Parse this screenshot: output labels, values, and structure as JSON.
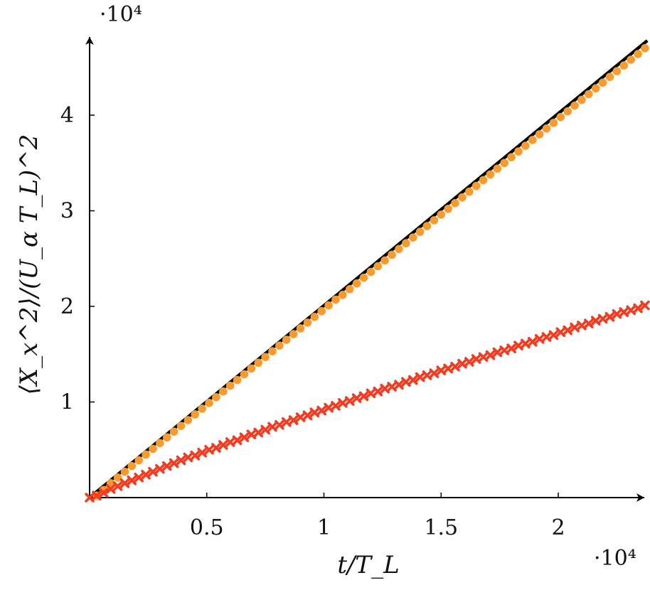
{
  "chart_data": {
    "type": "line",
    "xlabel": "t/T_L",
    "ylabel": "⟨X_x^2⟩/(U_α T_L)^2",
    "x_scale_label": "·10⁴",
    "y_scale_label": "·10⁴",
    "xlim": [
      0,
      2.38
    ],
    "ylim": [
      0,
      4.8
    ],
    "xticks": [
      0.5,
      1,
      1.5,
      2
    ],
    "yticks": [
      1,
      2,
      3,
      4
    ],
    "xtick_labels": [
      "0.5",
      "1",
      "1.5",
      "2"
    ],
    "ytick_labels": [
      "1",
      "2",
      "3",
      "4"
    ],
    "grid": false,
    "legend": "none",
    "series": [
      {
        "style": "solid-line",
        "color": "#000000",
        "x": [
          0,
          2.38
        ],
        "y": [
          0,
          4.78
        ]
      },
      {
        "style": "circle-markers",
        "color": "#f79b30",
        "x": [
          0.03,
          0.06,
          0.09,
          0.12,
          0.15,
          0.18,
          0.21,
          0.24,
          0.27,
          0.3,
          0.33,
          0.36,
          0.39,
          0.42,
          0.45,
          0.48,
          0.51,
          0.54,
          0.57,
          0.6,
          0.63,
          0.66,
          0.69,
          0.72,
          0.75,
          0.78,
          0.81,
          0.84,
          0.87,
          0.9,
          0.93,
          0.96,
          0.99,
          1.02,
          1.05,
          1.08,
          1.11,
          1.14,
          1.17,
          1.2,
          1.23,
          1.26,
          1.29,
          1.32,
          1.35,
          1.38,
          1.41,
          1.44,
          1.47,
          1.5,
          1.53,
          1.56,
          1.59,
          1.62,
          1.65,
          1.68,
          1.71,
          1.74,
          1.77,
          1.8,
          1.83,
          1.86,
          1.89,
          1.92,
          1.95,
          1.98,
          2.01,
          2.04,
          2.07,
          2.1,
          2.13,
          2.16,
          2.19,
          2.22,
          2.25,
          2.28,
          2.31,
          2.34,
          2.37
        ],
        "y": [
          0.02,
          0.08,
          0.15,
          0.21,
          0.27,
          0.33,
          0.39,
          0.45,
          0.51,
          0.57,
          0.63,
          0.69,
          0.75,
          0.81,
          0.87,
          0.93,
          0.99,
          1.05,
          1.11,
          1.17,
          1.23,
          1.29,
          1.35,
          1.41,
          1.47,
          1.53,
          1.59,
          1.65,
          1.71,
          1.77,
          1.83,
          1.89,
          1.95,
          2.01,
          2.07,
          2.12,
          2.18,
          2.24,
          2.3,
          2.36,
          2.42,
          2.48,
          2.54,
          2.6,
          2.66,
          2.72,
          2.78,
          2.84,
          2.9,
          2.96,
          3.02,
          3.08,
          3.14,
          3.2,
          3.26,
          3.32,
          3.38,
          3.44,
          3.5,
          3.56,
          3.62,
          3.68,
          3.74,
          3.8,
          3.86,
          3.92,
          3.98,
          4.04,
          4.1,
          4.16,
          4.22,
          4.28,
          4.34,
          4.4,
          4.46,
          4.52,
          4.58,
          4.64,
          4.7
        ]
      },
      {
        "style": "x-markers",
        "color": "#f23c22",
        "x": [
          0.0,
          0.03,
          0.06,
          0.09,
          0.12,
          0.15,
          0.18,
          0.21,
          0.24,
          0.27,
          0.3,
          0.33,
          0.36,
          0.39,
          0.42,
          0.45,
          0.48,
          0.51,
          0.54,
          0.57,
          0.6,
          0.63,
          0.66,
          0.69,
          0.72,
          0.75,
          0.78,
          0.81,
          0.84,
          0.87,
          0.9,
          0.93,
          0.96,
          0.99,
          1.02,
          1.05,
          1.08,
          1.11,
          1.14,
          1.17,
          1.2,
          1.23,
          1.26,
          1.29,
          1.32,
          1.35,
          1.38,
          1.41,
          1.44,
          1.47,
          1.5,
          1.53,
          1.56,
          1.59,
          1.62,
          1.65,
          1.68,
          1.71,
          1.74,
          1.77,
          1.8,
          1.83,
          1.86,
          1.89,
          1.92,
          1.95,
          1.98,
          2.01,
          2.04,
          2.07,
          2.1,
          2.13,
          2.16,
          2.19,
          2.22,
          2.25,
          2.28,
          2.31,
          2.34,
          2.37
        ],
        "y": [
          0.0,
          0.02,
          0.05,
          0.09,
          0.12,
          0.15,
          0.18,
          0.21,
          0.24,
          0.27,
          0.3,
          0.33,
          0.36,
          0.39,
          0.42,
          0.44,
          0.47,
          0.5,
          0.52,
          0.55,
          0.58,
          0.6,
          0.63,
          0.66,
          0.68,
          0.71,
          0.74,
          0.76,
          0.79,
          0.81,
          0.84,
          0.86,
          0.89,
          0.91,
          0.94,
          0.96,
          0.99,
          1.01,
          1.04,
          1.06,
          1.09,
          1.11,
          1.14,
          1.16,
          1.18,
          1.21,
          1.23,
          1.26,
          1.28,
          1.3,
          1.33,
          1.35,
          1.37,
          1.4,
          1.42,
          1.45,
          1.47,
          1.49,
          1.52,
          1.54,
          1.56,
          1.59,
          1.61,
          1.63,
          1.66,
          1.68,
          1.7,
          1.73,
          1.75,
          1.78,
          1.8,
          1.82,
          1.85,
          1.87,
          1.89,
          1.92,
          1.94,
          1.96,
          1.98,
          2.01
        ]
      }
    ]
  }
}
